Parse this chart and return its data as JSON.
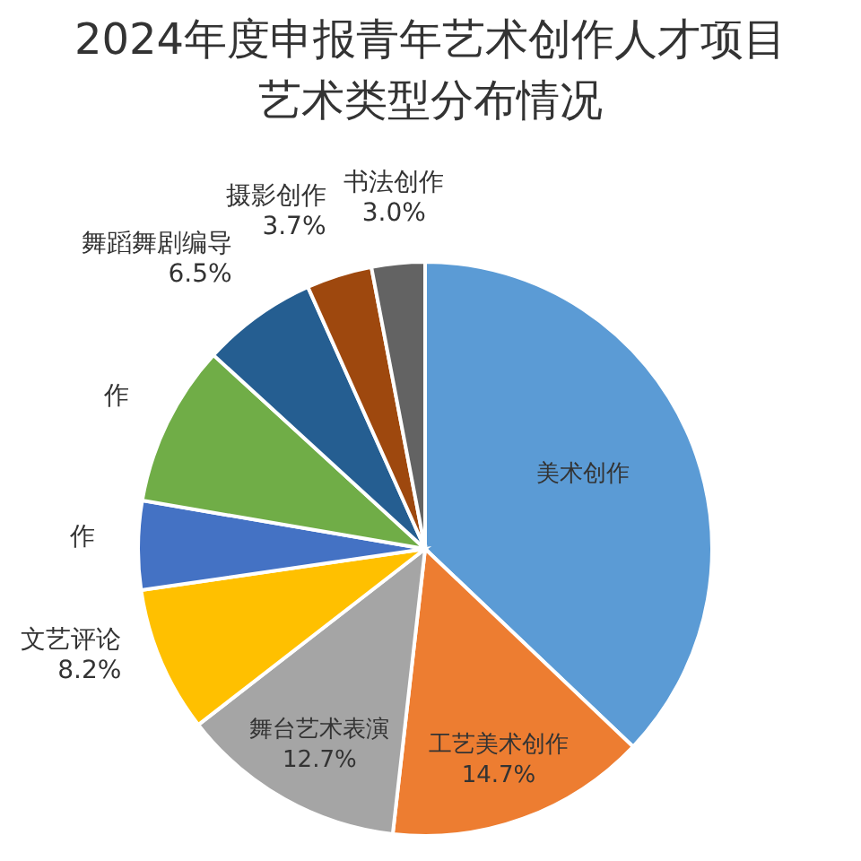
{
  "chart_data": {
    "type": "pie",
    "title": "2024年度申报青年艺术创作人才项目",
    "subtitle": "艺术类型分布情况",
    "categories": [
      "美术创作",
      "工艺美术创作",
      "舞台艺术表演",
      "文艺评论",
      "作",
      "作",
      "舞蹈舞剧编导",
      "摄影创作",
      "书法创作"
    ],
    "values": [
      37.1,
      14.7,
      12.7,
      8.2,
      5.0,
      9.1,
      6.5,
      3.7,
      3.0
    ],
    "value_labels": [
      null,
      "14.7%",
      "12.7%",
      "8.2%",
      null,
      null,
      "6.5%",
      "3.7%",
      "3.0%"
    ],
    "colors": [
      "#5b9bd5",
      "#ed7d31",
      "#a5a5a5",
      "#ffc000",
      "#4472c4",
      "#70ad47",
      "#255e91",
      "#9e480e",
      "#636363"
    ]
  }
}
